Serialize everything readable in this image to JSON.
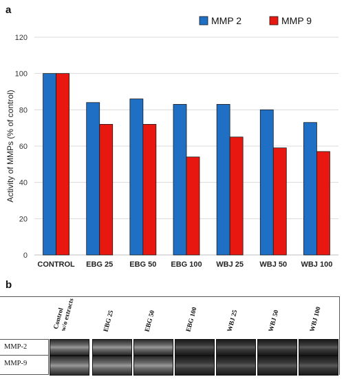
{
  "panels": {
    "a": "a",
    "b": "b"
  },
  "chart_data": {
    "type": "bar",
    "ylabel": "Activity of MMPs (% of control)",
    "xlabel": "",
    "ylim": [
      0,
      120
    ],
    "yticks": [
      0,
      20,
      40,
      60,
      80,
      100,
      120
    ],
    "grid": true,
    "legend_position": "top-right",
    "categories": [
      "CONTROL",
      "EBG 25",
      "EBG 50",
      "EBG 100",
      "WBJ 25",
      "WBJ 50",
      "WBJ 100"
    ],
    "series": [
      {
        "name": "MMP 2",
        "color": "#1f6fc4",
        "values": [
          100,
          84,
          86,
          83,
          83,
          80,
          73
        ]
      },
      {
        "name": "MMP 9",
        "color": "#e8170f",
        "values": [
          100,
          72,
          72,
          54,
          65,
          59,
          57
        ]
      }
    ]
  },
  "gel": {
    "lanes": [
      "Control\nw/o extracts",
      "EBG 25",
      "EBG 50",
      "EBG 100",
      "WBJ 25",
      "WBJ 50",
      "WBJ 100"
    ],
    "rows": [
      "MMP-2",
      "MMP-9"
    ]
  }
}
